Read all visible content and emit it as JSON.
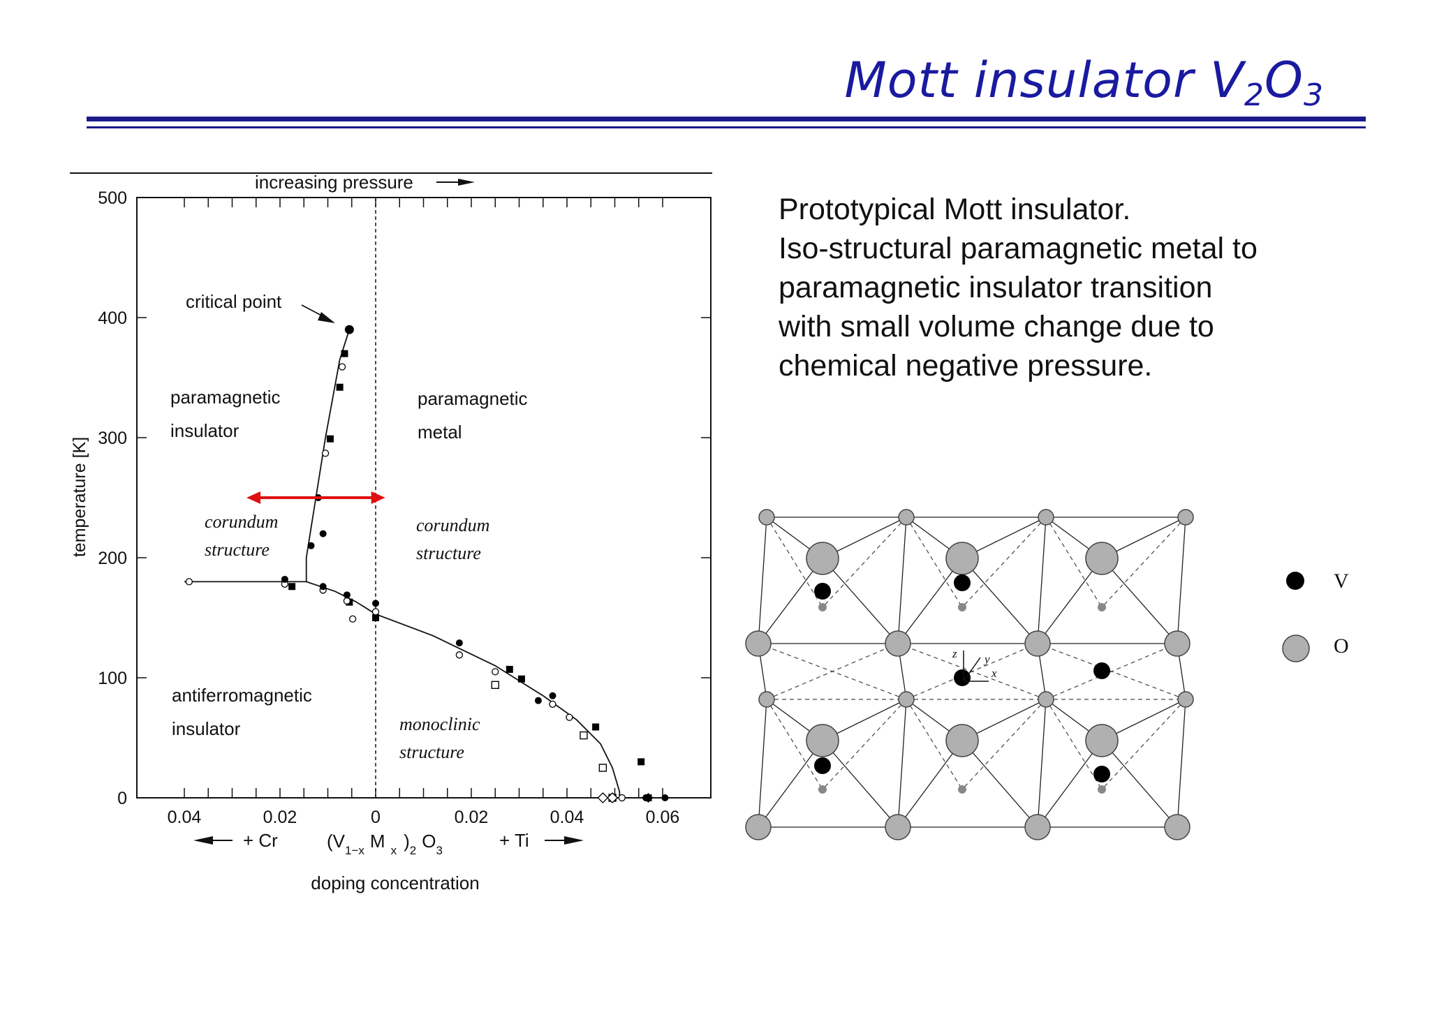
{
  "slide": {
    "title_main": "Mott insulator V",
    "title_sub1": "2",
    "title_mid": "O",
    "title_sub2": "3",
    "text_lines": [
      "Prototypical Mott insulator.",
      "Iso-structural paramagnetic metal to",
      "paramagnetic insulator transition",
      "with small volume change due to",
      "chemical negative pressure."
    ]
  },
  "chart_data": {
    "type": "scatter",
    "top_label": "increasing pressure",
    "ylabel": "temperature [K]",
    "xlabel": "doping concentration",
    "xlim": [
      -0.04,
      0.06
    ],
    "ylim": [
      0,
      500
    ],
    "y_ticks": [
      0,
      100,
      200,
      300,
      400,
      500
    ],
    "x_tick_values": [
      -0.04,
      -0.02,
      0,
      0.02,
      0.04,
      0.06
    ],
    "x_tick_labels": [
      "0.04",
      "0.02",
      "0",
      "0.02",
      "0.04",
      "0.06"
    ],
    "doping_labels": {
      "left": "+ Cr",
      "center_V": "(V",
      "center_sub1": "1−x",
      "center_M": "M",
      "center_sub2": "x",
      "center_close": ")",
      "center_sub3": "2",
      "center_O": "O",
      "center_sub4": "3",
      "right": "+ Ti"
    },
    "regions": {
      "pi_line1": "paramagnetic",
      "pi_line2": "insulator",
      "pm_line1": "paramagnetic",
      "pm_line2": "metal",
      "cor_left1": "corundum",
      "cor_left2": "structure",
      "cor_right1": "corundum",
      "cor_right2": "structure",
      "afi_line1": "antiferromagnetic",
      "afi_line2": "insulator",
      "mono1": "monoclinic",
      "mono2": "structure",
      "critical": "critical point"
    },
    "vertical_dashed_x": 0,
    "arrow_range": {
      "x": [
        -0.027,
        0.002
      ],
      "y": 250,
      "color": "#e01010"
    },
    "boundary_mit": [
      [
        -0.0055,
        390
      ],
      [
        -0.0075,
        365
      ],
      [
        -0.0105,
        300
      ],
      [
        -0.0125,
        250
      ],
      [
        -0.0145,
        200
      ],
      [
        -0.0145,
        180
      ]
    ],
    "boundary_afi_cr": [
      [
        -0.04,
        180
      ],
      [
        -0.0145,
        180
      ],
      [
        -0.013,
        178
      ],
      [
        -0.0085,
        172
      ],
      [
        -0.004,
        163
      ],
      [
        0,
        153
      ],
      [
        0.012,
        135
      ],
      [
        0.025,
        110
      ],
      [
        0.035,
        85
      ],
      [
        0.042,
        65
      ],
      [
        0.047,
        45
      ],
      [
        0.0495,
        25
      ],
      [
        0.051,
        5
      ],
      [
        0.051,
        0
      ]
    ],
    "series": [
      {
        "marker": "filled-square",
        "points": [
          [
            -0.0065,
            370
          ],
          [
            -0.0075,
            342
          ],
          [
            -0.0095,
            299
          ],
          [
            -0.0175,
            176
          ],
          [
            -0.0055,
            163
          ],
          [
            0,
            150
          ],
          [
            0.028,
            107
          ],
          [
            0.0305,
            99
          ],
          [
            0.046,
            59
          ],
          [
            0.0555,
            30
          ],
          [
            0.057,
            0
          ]
        ]
      },
      {
        "marker": "open-circle",
        "points": [
          [
            -0.007,
            359
          ],
          [
            -0.0105,
            287
          ],
          [
            -0.039,
            180
          ],
          [
            -0.019,
            178
          ],
          [
            -0.011,
            173
          ],
          [
            -0.006,
            164
          ],
          [
            -0.0048,
            149
          ],
          [
            0,
            155
          ],
          [
            0.0175,
            119
          ],
          [
            0.025,
            105
          ],
          [
            0.037,
            78
          ],
          [
            0.0405,
            67
          ],
          [
            0.0515,
            0
          ]
        ]
      },
      {
        "marker": "filled-circle",
        "points": [
          [
            -0.0055,
            390
          ],
          [
            -0.012,
            250
          ],
          [
            -0.011,
            220
          ],
          [
            -0.0135,
            210
          ],
          [
            -0.019,
            182
          ],
          [
            -0.011,
            176
          ],
          [
            -0.006,
            169
          ],
          [
            0,
            162
          ],
          [
            0.0175,
            129
          ],
          [
            0.034,
            81
          ],
          [
            0.037,
            85
          ],
          [
            0.0565,
            0
          ],
          [
            0.0605,
            0
          ]
        ]
      },
      {
        "marker": "open-square",
        "points": [
          [
            0.025,
            94
          ],
          [
            0.0435,
            52
          ],
          [
            0.0475,
            25
          ],
          [
            0.0495,
            0
          ]
        ]
      },
      {
        "marker": "open-diamond",
        "points": [
          [
            0.0475,
            0
          ],
          [
            0.0495,
            0
          ]
        ]
      },
      {
        "marker": "filled-diamond",
        "points": [
          [
            0.057,
            0
          ]
        ]
      }
    ]
  },
  "crystal_legend": {
    "v_label": "V",
    "o_label": "O",
    "axis_z": "z",
    "axis_y": "y",
    "axis_x": "x",
    "v_color": "#000000",
    "o_color": "#b0b0b0"
  }
}
